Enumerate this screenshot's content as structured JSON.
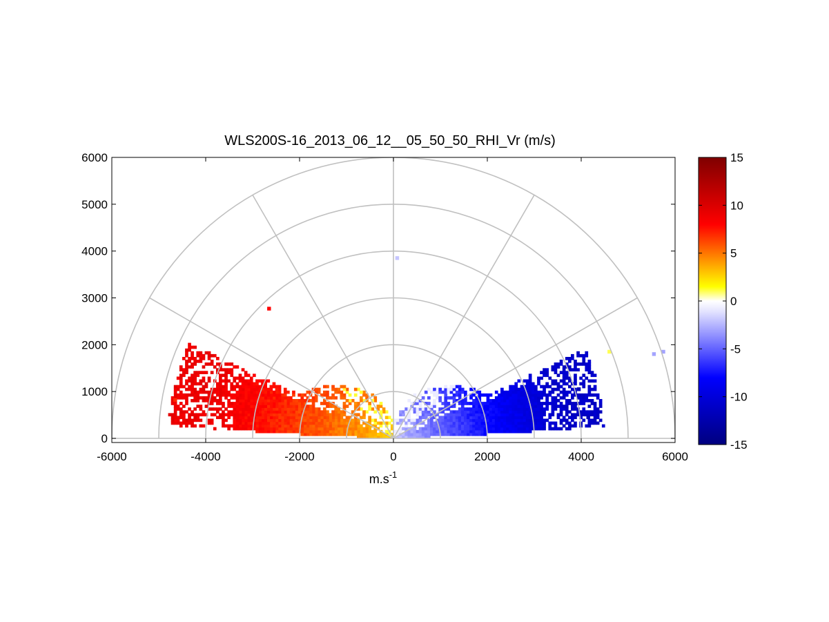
{
  "chart_data": {
    "type": "heatmap",
    "subtype": "polar-rhi",
    "title": "WLS200S-16_2013_06_12__05_50_50_RHI_Vr (m/s)",
    "xlabel": "m.s",
    "xlabel_superscript": "-1",
    "ylabel": "",
    "xlim": [
      -6000,
      6000
    ],
    "ylim": [
      0,
      6000
    ],
    "x_ticks": [
      "-6000",
      "-4000",
      "-2000",
      "0",
      "2000",
      "4000",
      "6000"
    ],
    "y_ticks": [
      "0",
      "1000",
      "2000",
      "3000",
      "4000",
      "5000",
      "6000"
    ],
    "polar_grid": {
      "ring_radii": [
        1000,
        2000,
        3000,
        4000,
        5000,
        6000
      ],
      "spoke_angles_deg": [
        0,
        30,
        60,
        90,
        120,
        150,
        180
      ]
    },
    "colorbar": {
      "range": [
        -15,
        15
      ],
      "ticks": [
        "15",
        "10",
        "5",
        "0",
        "-5",
        "-10",
        "-15"
      ],
      "colormap": [
        "#00007f",
        "#0000ff",
        "#e6e6ff",
        "#ffffff",
        "#ffff00",
        "#ff0000",
        "#7f0000"
      ]
    },
    "velocity_field": {
      "units": "m/s",
      "description_of_sectors": [
        {
          "side": "negative-x",
          "elevation_deg_range": [
            3,
            25
          ],
          "max_range_m": 4800,
          "vr_near_m_s": 2,
          "vr_far_m_s": 9
        },
        {
          "side": "positive-x",
          "elevation_deg_range": [
            3,
            25
          ],
          "max_range_m": 4500,
          "vr_near_m_s": -1,
          "vr_far_m_s": -11
        }
      ],
      "sparse_gates": [
        {
          "x": -2650,
          "y": 2770,
          "vr": 8
        },
        {
          "x": 80,
          "y": 3850,
          "vr": -2
        },
        {
          "x": 5550,
          "y": 1800,
          "vr": -3
        },
        {
          "x": 5750,
          "y": 1850,
          "vr": -3
        },
        {
          "x": 4600,
          "y": 1850,
          "vr": 1
        },
        {
          "x": -4650,
          "y": 820,
          "vr": 7
        },
        {
          "x": 3950,
          "y": 1050,
          "vr": -12
        },
        {
          "x": 4150,
          "y": 450,
          "vr": -12
        }
      ]
    }
  }
}
